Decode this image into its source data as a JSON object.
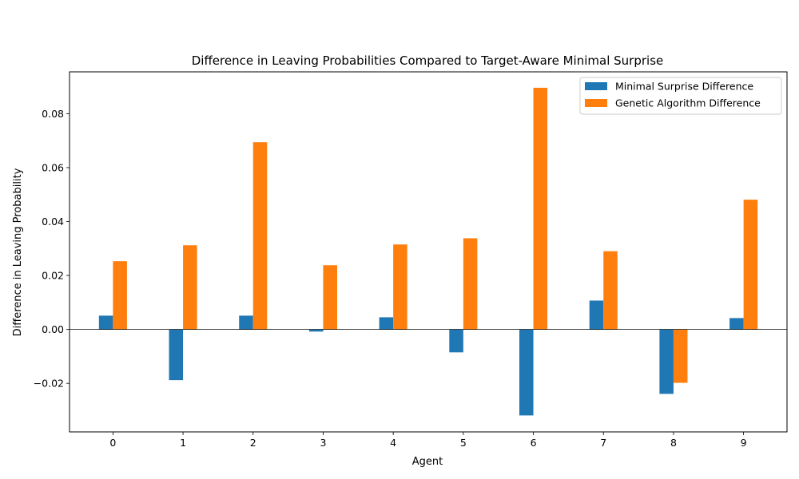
{
  "chart_data": {
    "type": "bar",
    "title": "Difference in Leaving Probabilities Compared to Target-Aware Minimal Surprise",
    "xlabel": "Agent",
    "ylabel": "Difference in Leaving Probability",
    "categories": [
      "0",
      "1",
      "2",
      "3",
      "4",
      "5",
      "6",
      "7",
      "8",
      "9"
    ],
    "series": [
      {
        "name": "Minimal Surprise Difference",
        "color": "#1f77b4",
        "values": [
          0.0051,
          -0.0188,
          0.0051,
          -0.0008,
          0.0045,
          -0.0085,
          -0.0319,
          0.0107,
          -0.0239,
          0.0042
        ]
      },
      {
        "name": "Genetic Algorithm Difference",
        "color": "#ff7f0e",
        "values": [
          0.0253,
          0.0312,
          0.0694,
          0.0238,
          0.0315,
          0.0338,
          0.0896,
          0.029,
          -0.0198,
          0.0481
        ]
      }
    ],
    "ylim": [
      -0.038,
      0.0955
    ],
    "yticks": [
      -0.02,
      0.0,
      0.02,
      0.04,
      0.06,
      0.08
    ],
    "ytick_labels": [
      "−0.02",
      "0.00",
      "0.02",
      "0.04",
      "0.06",
      "0.08"
    ],
    "zero_line": true,
    "grid": false,
    "legend_position": "top-right"
  }
}
